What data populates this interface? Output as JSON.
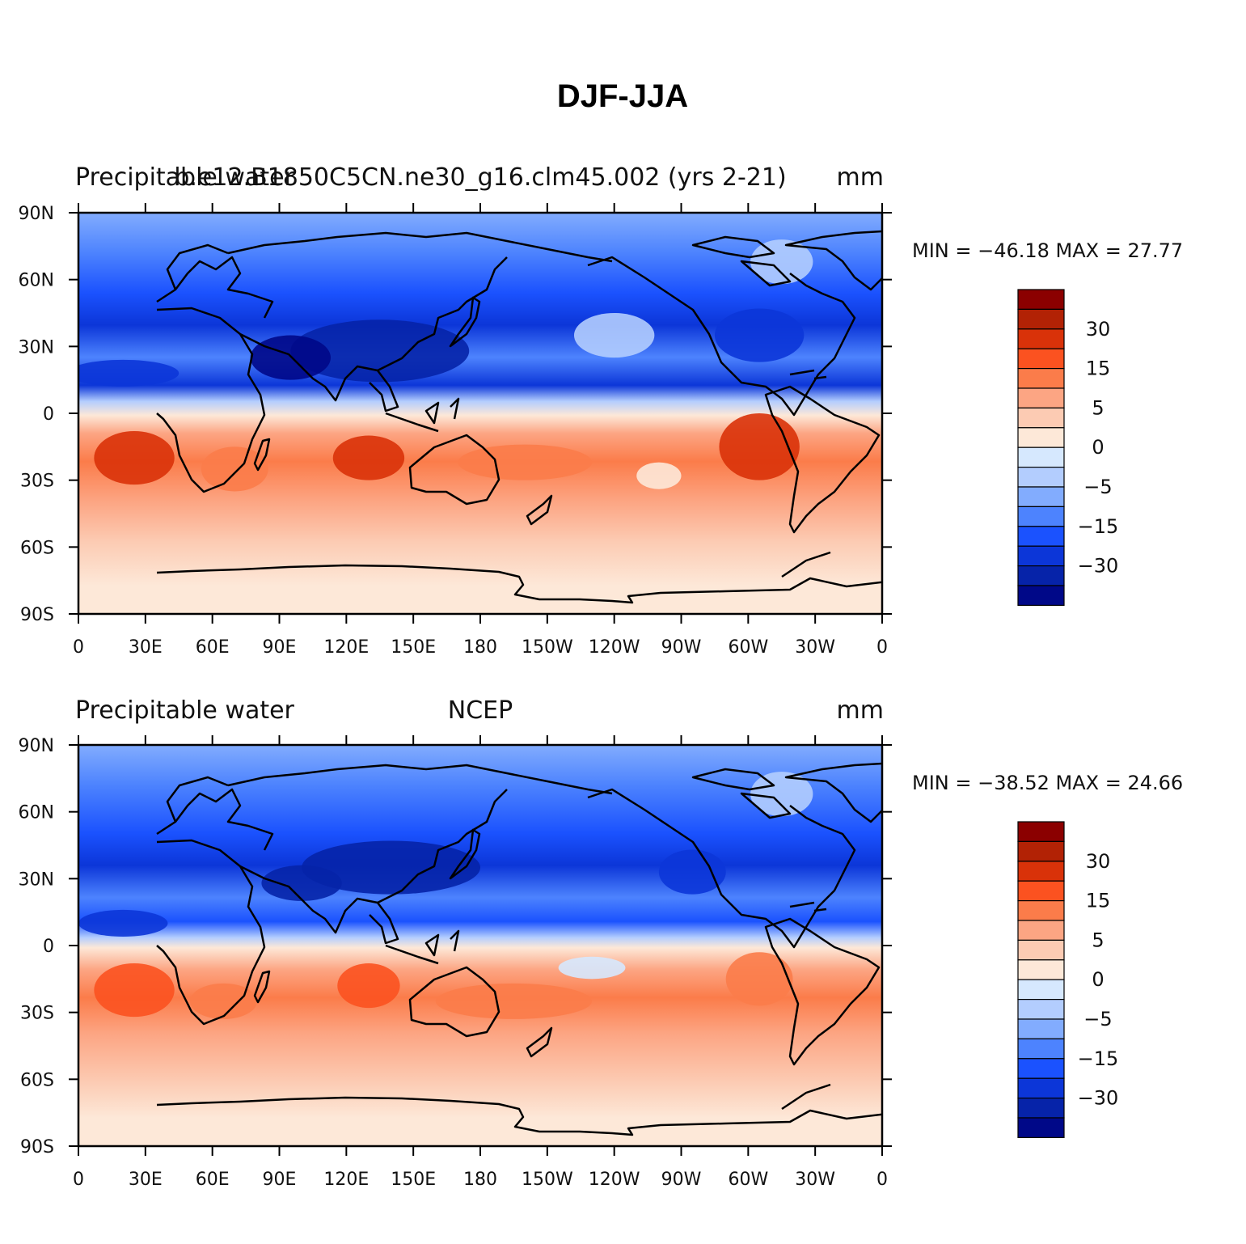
{
  "title": "DJF-JJA",
  "chart_data": [
    {
      "type": "heatmap",
      "panel": "top",
      "left_title": "Precipitable water",
      "center_title": "b.e12.B1850C5CN.ne30_g16.clm45.002 (yrs 2-21)",
      "right_title": "mm",
      "minmax_text": "MIN = −46.18  MAX =   27.77",
      "min": -46.18,
      "max": 27.77,
      "xlim": [
        0,
        360
      ],
      "ylim": [
        -90,
        90
      ],
      "x_ticks": [
        "0",
        "30E",
        "60E",
        "90E",
        "120E",
        "150E",
        "180",
        "150W",
        "120W",
        "90W",
        "60W",
        "30W",
        "0"
      ],
      "y_ticks": [
        "90N",
        "60N",
        "30N",
        "0",
        "30S",
        "60S",
        "90S"
      ],
      "colorbar_labels": [
        "30",
        "15",
        "5",
        "0",
        "−5",
        "−15",
        "−30"
      ]
    },
    {
      "type": "heatmap",
      "panel": "bottom",
      "left_title": "Precipitable water",
      "center_title": "NCEP",
      "right_title": "mm",
      "minmax_text": "MIN = −38.52  MAX =   24.66",
      "min": -38.52,
      "max": 24.66,
      "xlim": [
        0,
        360
      ],
      "ylim": [
        -90,
        90
      ],
      "x_ticks": [
        "0",
        "30E",
        "60E",
        "90E",
        "120E",
        "150E",
        "180",
        "150W",
        "120W",
        "90W",
        "60W",
        "30W",
        "0"
      ],
      "y_ticks": [
        "90N",
        "60N",
        "30N",
        "0",
        "30S",
        "60S",
        "90S"
      ],
      "colorbar_labels": [
        "30",
        "15",
        "5",
        "0",
        "−5",
        "−15",
        "−30"
      ]
    }
  ],
  "colorbar": {
    "colors": [
      "#8b0000",
      "#b22205",
      "#d93209",
      "#fb5220",
      "#fb7c4a",
      "#fca583",
      "#fccbb3",
      "#fde8d8",
      "#d6e8fe",
      "#b3cdfe",
      "#82acfe",
      "#4d83fe",
      "#1b52fe",
      "#0c36d8",
      "#0623a9",
      "#000888"
    ]
  }
}
